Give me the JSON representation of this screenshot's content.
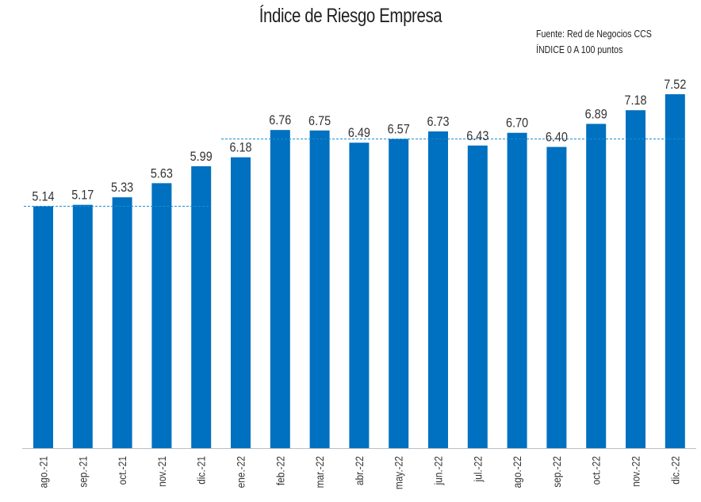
{
  "chart_data": {
    "type": "bar",
    "title": "Índice de Riesgo Empresa",
    "source_note": "Fuente: Red de Negocios CCS",
    "scale_note": "ÍNDICE 0 A 100  puntos",
    "categories": [
      "ago.-21",
      "sep.-21",
      "oct.-21",
      "nov.-21",
      "dic.-21",
      "ene.-22",
      "feb.-22",
      "mar.-22",
      "abr.-22",
      "may.-22",
      "jun.-22",
      "jul.-22",
      "ago.-22",
      "sep.-22",
      "oct.-22",
      "nov.-22",
      "dic.-22"
    ],
    "series": [
      {
        "values": [
          5.14,
          5.17,
          5.33,
          5.63,
          5.99,
          6.18,
          6.76,
          6.75,
          6.49,
          6.57,
          6.73,
          6.43,
          6.7,
          6.4,
          6.89,
          7.18,
          7.52
        ],
        "labels": [
          "5.14",
          "5.17",
          "5.33",
          "5.63",
          "5.99",
          "6.18",
          "6.76",
          "6.75",
          "6.49",
          "6.57",
          "6.73",
          "6.43",
          "6.70",
          "6.40",
          "6.89",
          "7.18",
          "7.52"
        ]
      }
    ],
    "reference_lines": [
      {
        "value": 5.14,
        "from": "ago.-21",
        "to": "dic.-21"
      },
      {
        "value": 6.57,
        "from": "ene.-22",
        "to": "dic.-22"
      }
    ],
    "ylim": [
      0,
      7.52
    ],
    "grid": false,
    "legend": "none",
    "colors": {
      "bar": "#0070c0",
      "reference_line": "#1a8fd0",
      "axis": "#bfbfbf"
    }
  }
}
